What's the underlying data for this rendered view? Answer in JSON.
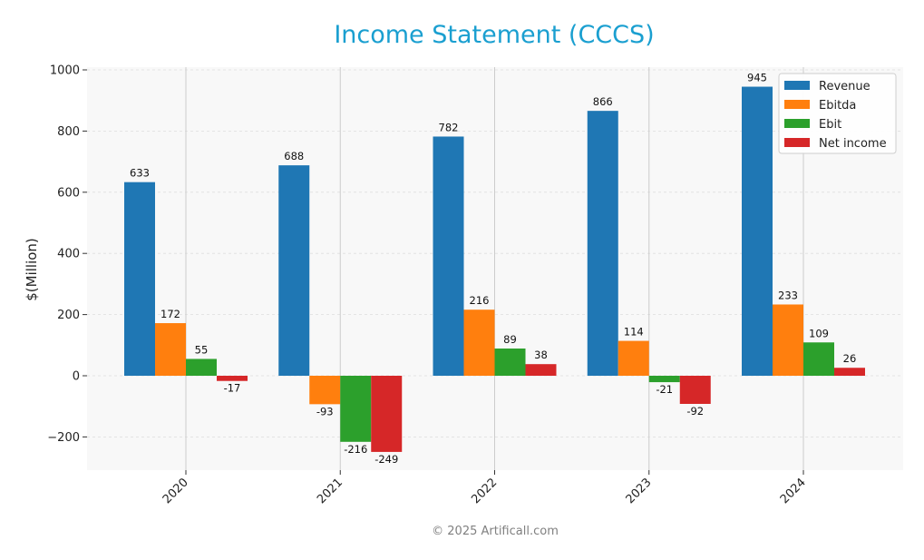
{
  "chart_data": {
    "type": "bar",
    "title": "Income Statement (CCCS)",
    "ylabel": "$(Million)",
    "xlabel": "",
    "categories": [
      "2020",
      "2021",
      "2022",
      "2023",
      "2024"
    ],
    "series": [
      {
        "name": "Revenue",
        "color": "#1f77b4",
        "values": [
          633,
          688,
          782,
          866,
          945
        ]
      },
      {
        "name": "Ebitda",
        "color": "#ff7f0e",
        "values": [
          172,
          -93,
          216,
          114,
          233
        ]
      },
      {
        "name": "Ebit",
        "color": "#2ca02c",
        "values": [
          55,
          -216,
          89,
          -21,
          109
        ]
      },
      {
        "name": "Net income",
        "color": "#d62728",
        "values": [
          -17,
          -249,
          38,
          -92,
          26
        ]
      }
    ],
    "ylim": [
      -310,
      1010
    ],
    "yticks": [
      -200,
      0,
      200,
      400,
      600,
      800,
      1000
    ],
    "ytick_labels": [
      "−200",
      "0",
      "200",
      "400",
      "600",
      "800",
      "1000"
    ],
    "grid": true,
    "legend_position": "top-right"
  },
  "copyright": "© 2025 Artificall.com"
}
